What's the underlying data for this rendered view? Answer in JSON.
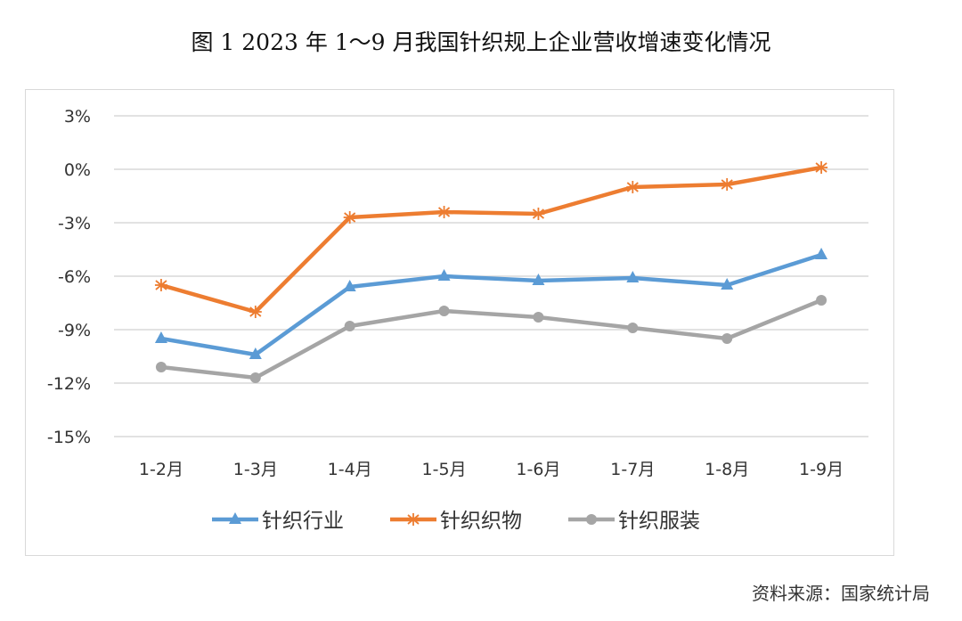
{
  "title": "图 1   2023 年 1～9 月我国针织规上企业营收增速变化情况",
  "source": "资料来源：国家统计局",
  "chart_data": {
    "type": "line",
    "title": "",
    "categories": [
      "1-2月",
      "1-3月",
      "1-4月",
      "1-5月",
      "1-6月",
      "1-7月",
      "1-8月",
      "1-9月"
    ],
    "yticks": [
      "3%",
      "0%",
      "-3%",
      "-6%",
      "-9%",
      "-12%",
      "-15%"
    ],
    "ylim": [
      -15,
      3
    ],
    "ystep": 3,
    "grid": true,
    "legend_position": "bottom",
    "series": [
      {
        "name": "针织行业",
        "color": "#5b9bd5",
        "marker": "triangle",
        "values": [
          -9.5,
          -10.4,
          -6.6,
          -6.0,
          -6.25,
          -6.1,
          -6.5,
          -4.8
        ]
      },
      {
        "name": "针织织物",
        "color": "#ed7d31",
        "marker": "asterisk",
        "values": [
          -6.5,
          -8.0,
          -2.7,
          -2.4,
          -2.5,
          -1.0,
          -0.85,
          0.1
        ]
      },
      {
        "name": "针织服装",
        "color": "#a5a5a5",
        "marker": "circle",
        "values": [
          -11.1,
          -11.7,
          -8.8,
          -7.95,
          -8.3,
          -8.9,
          -9.5,
          -7.35
        ]
      }
    ]
  }
}
